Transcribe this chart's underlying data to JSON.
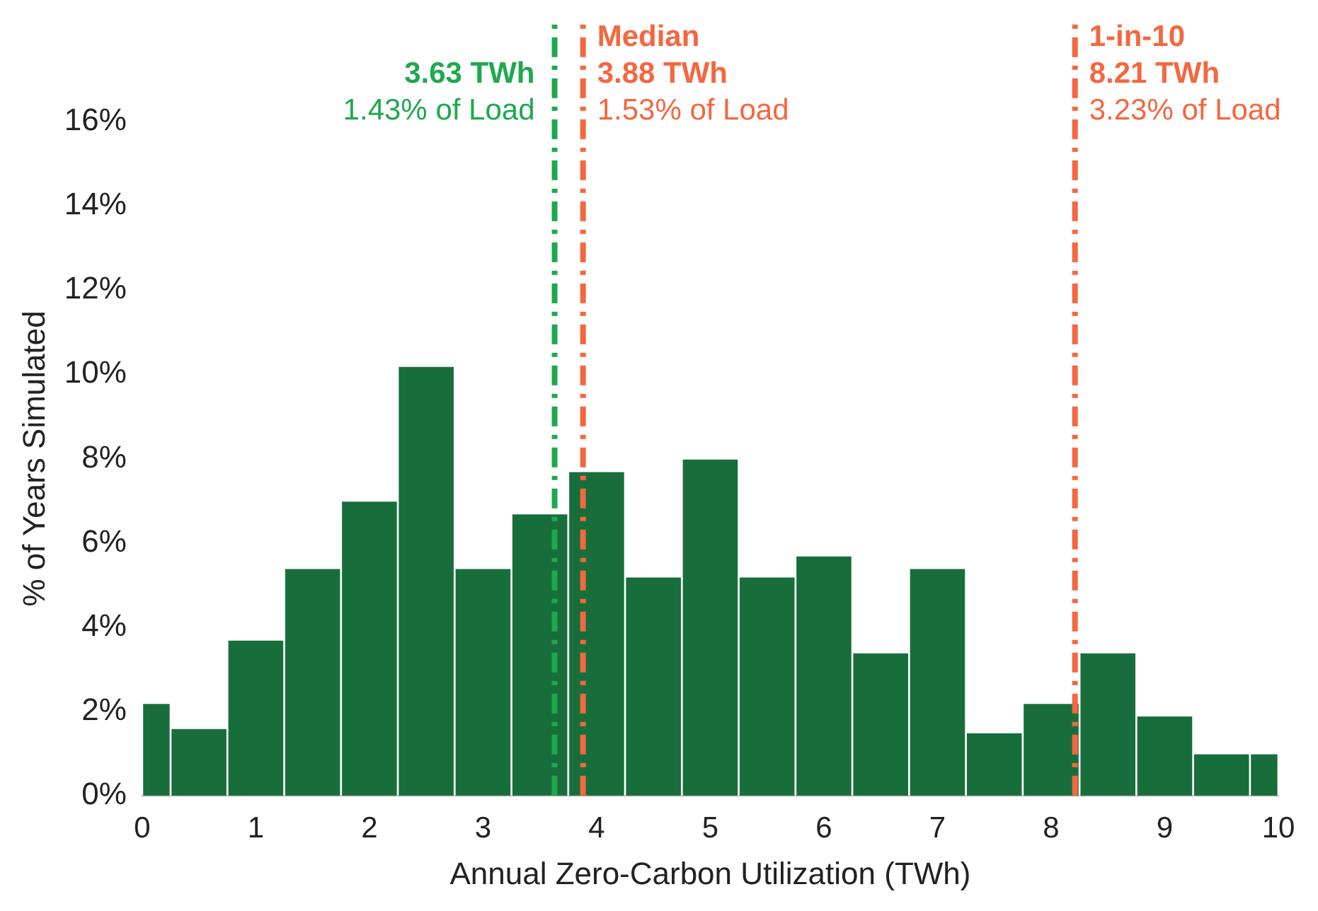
{
  "chart_data": {
    "type": "histogram",
    "xlabel": "Annual Zero-Carbon Utilization (TWh)",
    "ylabel": "% of Years Simulated",
    "bins": [
      0,
      0.25,
      0.75,
      1.25,
      1.75,
      2.25,
      2.75,
      3.25,
      3.75,
      4.25,
      4.75,
      5.25,
      5.75,
      6.25,
      6.75,
      7.25,
      7.75,
      8.25,
      8.75,
      9.25,
      9.75,
      10
    ],
    "values": [
      2.2,
      1.6,
      3.7,
      5.4,
      7.0,
      10.2,
      5.4,
      6.7,
      7.7,
      5.2,
      8.0,
      5.2,
      5.7,
      3.4,
      5.4,
      1.5,
      2.2,
      3.4,
      1.9,
      1.0,
      1.0
    ],
    "color": "#186e3b",
    "xlim": [
      0,
      10
    ],
    "xticks": [
      0,
      1,
      2,
      3,
      4,
      5,
      6,
      7,
      8,
      9,
      10
    ],
    "ylim": [
      0,
      16
    ],
    "yticks": [
      {
        "value": 0,
        "label": "0%"
      },
      {
        "value": 2,
        "label": "2%"
      },
      {
        "value": 4,
        "label": "4%"
      },
      {
        "value": 6,
        "label": "6%"
      },
      {
        "value": 8,
        "label": "8%"
      },
      {
        "value": 10,
        "label": "10%"
      },
      {
        "value": 12,
        "label": "12%"
      },
      {
        "value": 14,
        "label": "14%"
      },
      {
        "value": 16,
        "label": "16%"
      }
    ],
    "grid": false,
    "ref_lines": [
      {
        "axis": "x",
        "value": 3.63,
        "label": "3.63 TWh\n1.43% of Load",
        "color": "#1fa84f",
        "line_style": "dashdot"
      },
      {
        "axis": "x",
        "value": 3.88,
        "label": "Median\n3.88 TWh\n1.53% of Load",
        "color": "#f4673f",
        "line_style": "dashdot"
      },
      {
        "axis": "x",
        "value": 8.21,
        "label": "1-in-10\n8.21 TWh\n3.23% of Load",
        "color": "#f4673f",
        "line_style": "dashdot"
      }
    ]
  }
}
